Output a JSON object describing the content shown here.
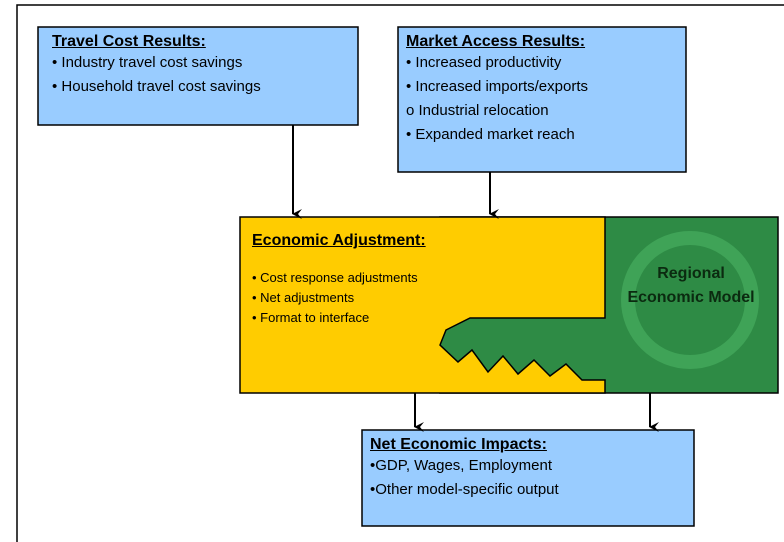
{
  "travel_cost": {
    "title": "Travel Cost Results:",
    "items": [
      "• Industry travel cost savings",
      "• Household travel cost savings"
    ]
  },
  "market_access": {
    "title": "Market Access Results:",
    "items": [
      "• Increased productivity",
      "• Increased imports/exports",
      "o Industrial relocation",
      "• Expanded market reach"
    ]
  },
  "economic_adjustment": {
    "title": "Economic Adjustment:",
    "items": [
      "• Cost response adjustments",
      "• Net adjustments",
      "• Format to interface"
    ]
  },
  "regional_model": {
    "lines": [
      "Regional",
      "Economic Model"
    ]
  },
  "net_impacts": {
    "title": "Net Economic Impacts:",
    "items": [
      "•GDP, Wages, Employment",
      "•Other model-specific output"
    ]
  }
}
